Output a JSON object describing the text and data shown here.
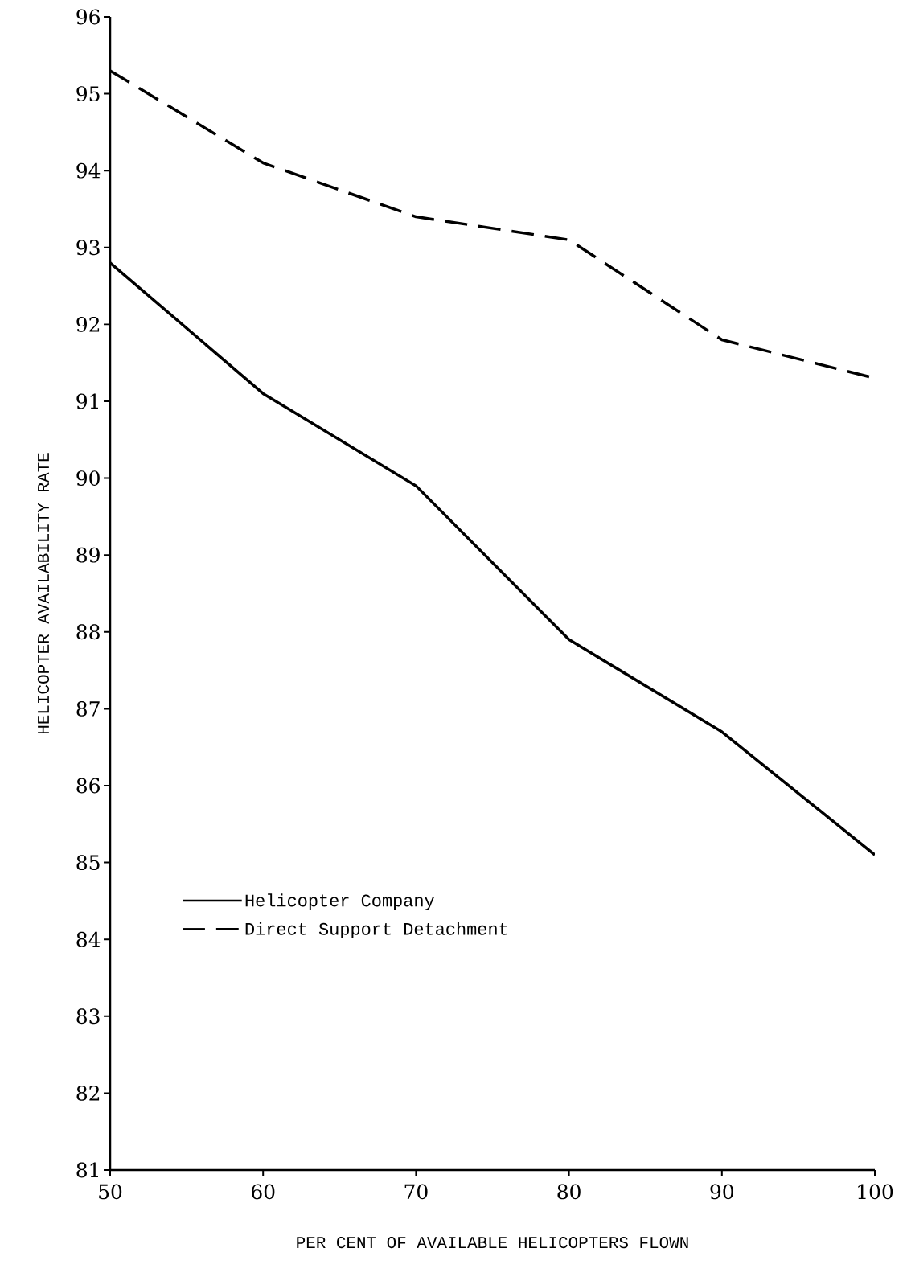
{
  "chart_data": {
    "type": "line",
    "xlabel": "PER CENT OF AVAILABLE HELICOPTERS FLOWN",
    "ylabel": "HELICOPTER AVAILABILITY RATE",
    "x": [
      50,
      60,
      70,
      80,
      90,
      100
    ],
    "series": [
      {
        "name": "Helicopter Company",
        "color": "#000000",
        "line_style": "solid",
        "values": [
          92.8,
          91.1,
          89.9,
          87.9,
          86.7,
          85.1
        ]
      },
      {
        "name": "Direct Support Detachment",
        "color": "#000000",
        "line_style": "dashed",
        "values": [
          95.3,
          94.1,
          93.4,
          93.1,
          91.8,
          91.3
        ]
      }
    ],
    "xlim": [
      50,
      100
    ],
    "xticks": [
      50,
      60,
      70,
      80,
      90,
      100
    ],
    "ylim": [
      81,
      96
    ],
    "yticks": [
      81,
      82,
      83,
      84,
      85,
      86,
      87,
      88,
      89,
      90,
      91,
      92,
      93,
      94,
      95,
      96
    ],
    "grid": false,
    "legend": "bottom left",
    "marker": "none"
  }
}
